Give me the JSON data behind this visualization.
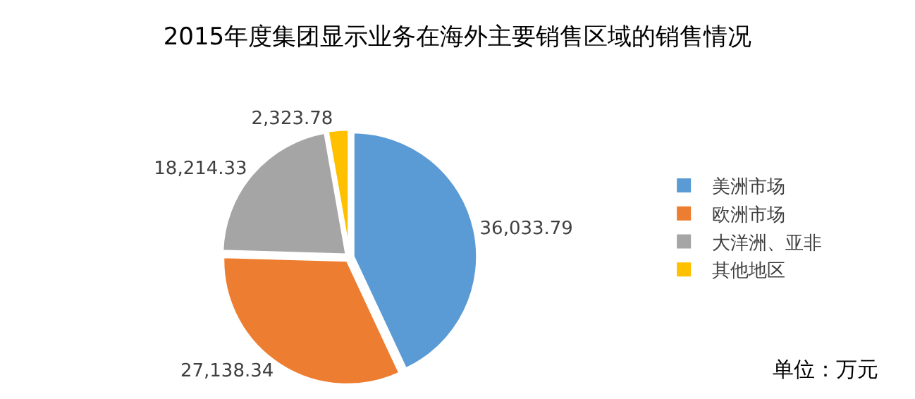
{
  "chart_data": {
    "type": "pie",
    "title": "2015年度集团显示业务在海外主要销售区域的销售情况",
    "categories": [
      "美洲市场",
      "欧洲市场",
      "大洋洲、亚非",
      "其他地区"
    ],
    "values": [
      36033.79,
      27138.34,
      18214.33,
      2323.78
    ],
    "value_labels": [
      "36,033.79",
      "27,138.34",
      "18,214.33",
      "2,323.78"
    ],
    "colors": [
      "#5b9bd5",
      "#ed7d31",
      "#a5a5a5",
      "#ffc000"
    ],
    "legend": "right",
    "annotations": [
      "单位：万元"
    ]
  }
}
